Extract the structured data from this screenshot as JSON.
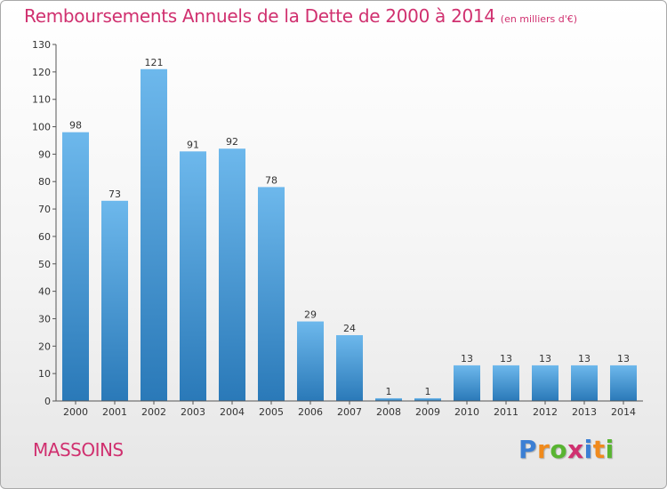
{
  "chart_data": {
    "type": "bar",
    "title": "Remboursements Annuels de la Dette de 2000 à 2014",
    "subtitle": "(en milliers d'€)",
    "categories": [
      "2000",
      "2001",
      "2002",
      "2003",
      "2004",
      "2005",
      "2006",
      "2007",
      "2008",
      "2009",
      "2010",
      "2011",
      "2012",
      "2013",
      "2014"
    ],
    "values": [
      98,
      73,
      121,
      91,
      92,
      78,
      29,
      24,
      1,
      1,
      13,
      13,
      13,
      13,
      13
    ],
    "ylim": [
      0,
      130
    ],
    "yticks": [
      0,
      10,
      20,
      30,
      40,
      50,
      60,
      70,
      80,
      90,
      100,
      110,
      120,
      130
    ],
    "xlabel": "",
    "ylabel": "",
    "data_labels": true
  },
  "commune": "MASSOINS",
  "logo": {
    "letters": [
      "P",
      "r",
      "o",
      "x",
      "i",
      "t",
      "i"
    ],
    "colors": [
      "#3b7fd4",
      "#f08a1c",
      "#58b431",
      "#d0306f",
      "#3b7fd4",
      "#f08a1c",
      "#58b431"
    ]
  },
  "colors": {
    "bar_light": "#6db8ec",
    "bar_dark": "#2a79b8",
    "title": "#d0306f",
    "text": "#333333",
    "axis": "#555555"
  }
}
